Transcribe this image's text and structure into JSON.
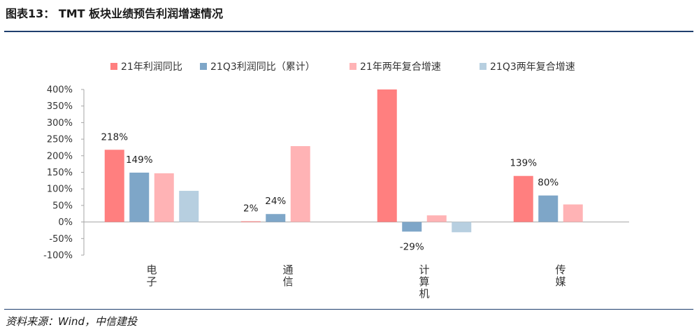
{
  "header": {
    "title": "图表13： TMT 板块业绩预告利润增速情况"
  },
  "footer": {
    "source": "资料来源：Wind，中信建投"
  },
  "chart_data": {
    "type": "bar",
    "categories": [
      "电子",
      "通信",
      "计算机",
      "传媒"
    ],
    "series": [
      {
        "name": "21年利润同比",
        "color": "#ff7f7f",
        "values": [
          218,
          2,
          400,
          139
        ]
      },
      {
        "name": "21Q3利润同比（累计）",
        "color": "#7ea6c8",
        "values": [
          149,
          24,
          -29,
          80
        ]
      },
      {
        "name": "21年两年复合增速",
        "color": "#ffb3b5",
        "values": [
          147,
          229,
          20,
          53
        ]
      },
      {
        "name": "21Q3两年复合增速",
        "color": "#b7cfe0",
        "values": [
          94,
          null,
          -31,
          null
        ]
      }
    ],
    "data_labels": [
      {
        "series": 0,
        "category": 0,
        "text": "218%"
      },
      {
        "series": 1,
        "category": 0,
        "text": "149%"
      },
      {
        "series": 0,
        "category": 1,
        "text": "2%"
      },
      {
        "series": 1,
        "category": 1,
        "text": "24%"
      },
      {
        "series": 1,
        "category": 2,
        "text": "-29%"
      },
      {
        "series": 0,
        "category": 3,
        "text": "139%"
      },
      {
        "series": 1,
        "category": 3,
        "text": "80%"
      }
    ],
    "y_ticks": [
      "400%",
      "350%",
      "300%",
      "250%",
      "200%",
      "150%",
      "100%",
      "50%",
      "0%",
      "-50%",
      "-100%"
    ],
    "y_tick_values": [
      400,
      350,
      300,
      250,
      200,
      150,
      100,
      50,
      0,
      -50,
      -100
    ],
    "ylim": [
      -100,
      400
    ],
    "grid": false,
    "legend": "top"
  }
}
